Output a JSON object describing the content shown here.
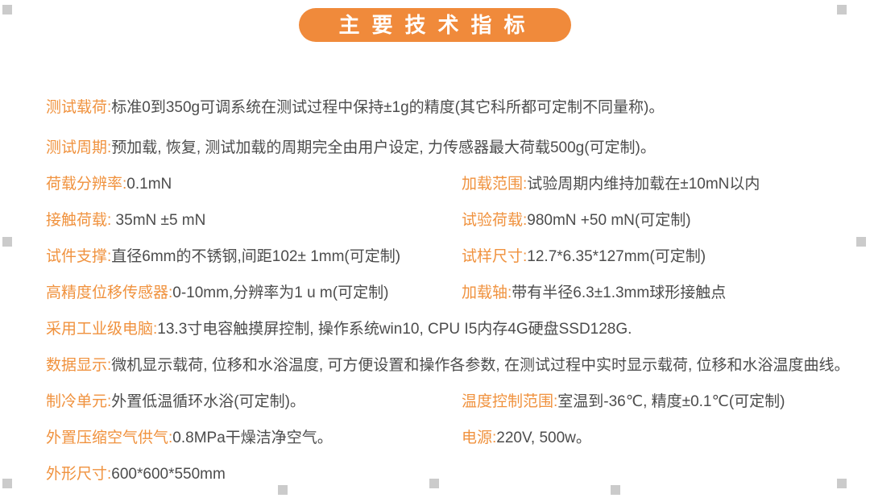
{
  "header": {
    "title": "主要技术指标"
  },
  "colors": {
    "accent_orange": "#F08A3B",
    "label_orange": "#F0923E",
    "body_text": "#4C4C4C",
    "handle_gray": "#CBCBCB"
  },
  "icons": {
    "selection_handle": "gray-square"
  },
  "specs": {
    "rows": [
      {
        "cells": [
          {
            "label": "测试载荷:",
            "value": "标准0到350g可调系统在测试过程中保持±1g的精度(其它科所都可定制不同量称)。"
          }
        ]
      },
      {
        "cells": [
          {
            "label": "测试周期:",
            "value": "预加载, 恢复, 测试加载的周期完全由用户设定, 力传感器最大荷载500g(可定制)。"
          }
        ]
      },
      {
        "cells": [
          {
            "label": "荷载分辨率:",
            "value": "0.1mN"
          },
          {
            "label": "加载范围:",
            "value": "试验周期内维持加载在±10mN以内"
          }
        ]
      },
      {
        "cells": [
          {
            "label": "接触荷载:",
            "value": " 35mN ±5 mN"
          },
          {
            "label": "试验荷载:",
            "value": "980mN +50 mN(可定制)"
          }
        ]
      },
      {
        "cells": [
          {
            "label": "试件支撑:",
            "value": "直径6mm的不锈钢,间距102± 1mm(可定制)"
          },
          {
            "label": "试样尺寸:",
            "value": "12.7*6.35*127mm(可定制)"
          }
        ]
      },
      {
        "cells": [
          {
            "label": "高精度位移传感器:",
            "value": "0-10mm,分辨率为1 u m(可定制)"
          },
          {
            "label": "加载轴:",
            "value": "带有半径6.3±1.3mm球形接触点"
          }
        ]
      },
      {
        "cells": [
          {
            "label": "采用工业级电脑:",
            "value": "13.3寸电容触摸屏控制, 操作系统win10, CPU I5内存4G硬盘SSD128G."
          }
        ]
      },
      {
        "cells": [
          {
            "label": "数据显示:",
            "value": "微机显示载荷, 位移和水浴温度, 可方便设置和操作各参数, 在测试过程中实时显示载荷, 位移和水浴温度曲线。"
          }
        ]
      },
      {
        "cells": [
          {
            "label": "制冷单元:",
            "value": "外置低温循环水浴(可定制)。"
          },
          {
            "label": "温度控制范围:",
            "value": "室温到-36℃, 精度±0.1℃(可定制)"
          }
        ]
      },
      {
        "cells": [
          {
            "label": "外置压缩空气供气:",
            "value": "0.8MPa干燥洁净空气。"
          },
          {
            "label": "电源:",
            "value": "220V, 500w。"
          }
        ]
      },
      {
        "cells": [
          {
            "label": "外形尺寸:",
            "value": "600*600*550mm"
          }
        ]
      }
    ]
  }
}
